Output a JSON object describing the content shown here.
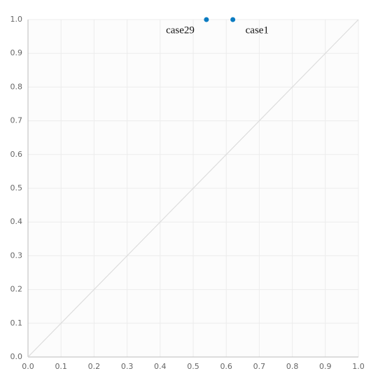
{
  "chart_data": {
    "type": "scatter",
    "series": [
      {
        "color": "#0a7bc1",
        "x": [
          0.54,
          0.62
        ],
        "values": [
          1.0,
          1.0
        ],
        "labels": [
          "case29",
          "case1"
        ]
      }
    ],
    "xlim": [
      0,
      1
    ],
    "ylim": [
      0,
      1
    ],
    "xticks": [
      {
        "value": 0,
        "label": "0.0"
      },
      0.1,
      0.2,
      0.3,
      0.4,
      0.5,
      0.6,
      0.7,
      0.8,
      0.9,
      {
        "value": 1,
        "label": "1.0"
      }
    ],
    "yticks": [
      {
        "value": 0,
        "label": "0.0"
      },
      0.1,
      0.2,
      0.3,
      0.4,
      0.5,
      0.6,
      0.7,
      0.8,
      0.9,
      {
        "value": 1,
        "label": "1.0"
      }
    ],
    "grid": true,
    "diagonal": true
  }
}
